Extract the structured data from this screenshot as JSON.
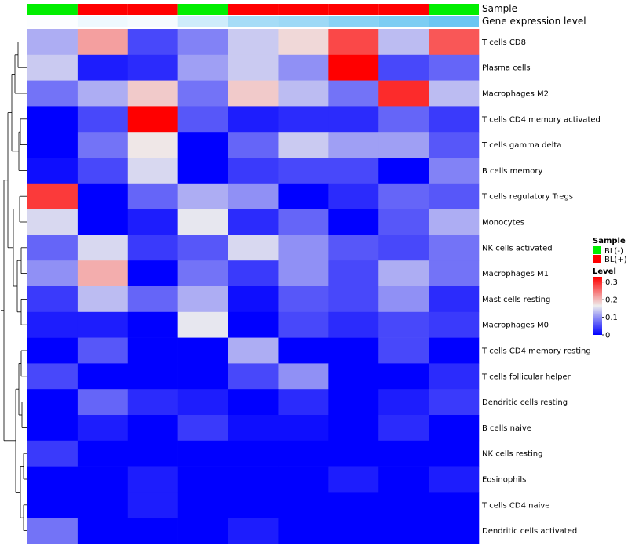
{
  "chart_data": {
    "type": "heatmap",
    "title": "",
    "rows": [
      "T cells CD8",
      "Plasma cells",
      "Macrophages M2",
      "T cells CD4 memory activated",
      "T cells gamma delta",
      "B cells memory",
      "T cells regulatory  Tregs",
      "Monocytes",
      "NK cells activated",
      "Macrophages M1",
      "Mast cells resting",
      "Macrophages M0",
      "T cells CD4 memory resting",
      "T cells follicular helper",
      "Dendritic cells resting",
      "B cells naive",
      "NK cells resting",
      "Eosinophils",
      "T cells CD4 naive",
      "Dendritic cells activated"
    ],
    "values": [
      [
        0.12,
        0.22,
        0.05,
        0.09,
        0.14,
        0.18,
        0.28,
        0.13,
        0.27
      ],
      [
        0.14,
        0.02,
        0.03,
        0.11,
        0.14,
        0.1,
        0.33,
        0.05,
        0.07
      ],
      [
        0.08,
        0.12,
        0.19,
        0.08,
        0.19,
        0.13,
        0.08,
        0.3,
        0.13
      ],
      [
        0.0,
        0.05,
        0.33,
        0.06,
        0.02,
        0.03,
        0.03,
        0.07,
        0.04
      ],
      [
        0.0,
        0.08,
        0.17,
        0.0,
        0.07,
        0.14,
        0.11,
        0.11,
        0.06
      ],
      [
        0.01,
        0.05,
        0.15,
        0.0,
        0.04,
        0.05,
        0.05,
        0.0,
        0.09
      ],
      [
        0.29,
        0.0,
        0.07,
        0.12,
        0.1,
        0.0,
        0.03,
        0.07,
        0.06
      ],
      [
        0.15,
        0.0,
        0.02,
        0.16,
        0.03,
        0.07,
        0.0,
        0.06,
        0.12
      ],
      [
        0.07,
        0.15,
        0.04,
        0.06,
        0.15,
        0.1,
        0.06,
        0.05,
        0.08
      ],
      [
        0.1,
        0.21,
        0.0,
        0.08,
        0.04,
        0.1,
        0.05,
        0.12,
        0.08
      ],
      [
        0.04,
        0.13,
        0.07,
        0.12,
        0.01,
        0.06,
        0.05,
        0.1,
        0.03
      ],
      [
        0.02,
        0.02,
        0.0,
        0.16,
        0.0,
        0.05,
        0.03,
        0.05,
        0.04
      ],
      [
        0.0,
        0.06,
        0.0,
        0.0,
        0.12,
        0.0,
        0.0,
        0.05,
        0.0
      ],
      [
        0.05,
        0.0,
        0.0,
        0.0,
        0.05,
        0.1,
        0.0,
        0.0,
        0.03
      ],
      [
        0.0,
        0.07,
        0.03,
        0.02,
        0.0,
        0.03,
        0.0,
        0.02,
        0.04
      ],
      [
        0.0,
        0.02,
        0.0,
        0.04,
        0.01,
        0.01,
        0.0,
        0.03,
        0.0
      ],
      [
        0.04,
        0.0,
        0.0,
        0.0,
        0.0,
        0.0,
        0.0,
        0.0,
        0.0
      ],
      [
        0.0,
        0.0,
        0.02,
        0.0,
        0.0,
        0.0,
        0.02,
        0.0,
        0.02
      ],
      [
        0.0,
        0.0,
        0.02,
        0.0,
        0.0,
        0.0,
        0.0,
        0.0,
        0.0
      ],
      [
        0.08,
        0.0,
        0.0,
        0.0,
        0.02,
        0.0,
        0.0,
        0.0,
        0.0
      ]
    ],
    "column_annotations": [
      {
        "name": "Sample",
        "values": [
          "BL(-)",
          "BL(+)",
          "BL(+)",
          "BL(-)",
          "BL(+)",
          "BL(+)",
          "BL(+)",
          "BL(+)",
          "BL(-)"
        ]
      },
      {
        "name": "Gene expression level",
        "values": [
          0.02,
          0.1,
          0.06,
          0.3,
          0.55,
          0.6,
          0.72,
          0.8,
          0.9
        ]
      }
    ],
    "legend": {
      "sample_title": "Sample",
      "sample_items": [
        {
          "label": "BL(-)",
          "color": "#00ee00"
        },
        {
          "label": "BL(+)",
          "color": "#ff0000"
        }
      ],
      "level_title": "Level",
      "level_ticks": [
        0.3,
        0.2,
        0.1,
        0
      ],
      "level_tick_labels": [
        "0.3",
        "0.2",
        "0.1",
        "0"
      ],
      "range": [
        0,
        0.33
      ],
      "placement": "right"
    },
    "colors": {
      "low": "#0000ff",
      "mid": "#eeeeee",
      "high": "#ff0000",
      "expr_low": "#ffffff",
      "expr_high": "#5bc0f0",
      "dendrogram": "#000000"
    }
  }
}
